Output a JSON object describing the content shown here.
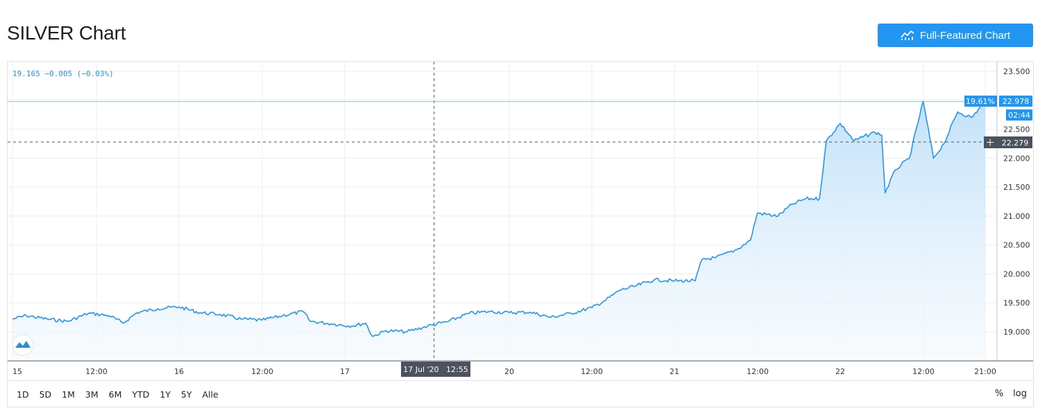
{
  "header": {
    "title": "SILVER Chart",
    "full_featured_label": "Full-Featured Chart",
    "full_featured_icon": "chart-line-icon"
  },
  "legend": {
    "text": "19.165 −0.005 (−0.03%)"
  },
  "price_tags": {
    "last_price": "22.978",
    "percent_change": "19.61%",
    "countdown": "02:44",
    "crosshair_price": "22.279",
    "crosshair_time": "17 Jul '20   12:55"
  },
  "range_buttons": [
    "1D",
    "5D",
    "1M",
    "3M",
    "6M",
    "YTD",
    "1Y",
    "5Y",
    "Alle"
  ],
  "scale_buttons": {
    "percent": "%",
    "log": "log"
  },
  "colors": {
    "line": "#2196f3",
    "fill_top": "#bfe0f8",
    "fill_bottom": "#f3f9fe",
    "tag_blue": "#2196f3",
    "tag_dark": "#4c525e",
    "grid": "#eceef2"
  },
  "chart_data": {
    "type": "area",
    "title": "SILVER Chart",
    "xlabel": "",
    "ylabel": "",
    "y_ticks": [
      "19.000",
      "19.500",
      "20.000",
      "20.500",
      "21.000",
      "21.500",
      "22.000",
      "22.500",
      "23.000",
      "23.500"
    ],
    "x_ticks": [
      "15",
      "12:00",
      "16",
      "12:00",
      "17",
      "20",
      "12:00",
      "21",
      "12:00",
      "22",
      "12:00",
      "21:00"
    ],
    "ylim": [
      18.6,
      23.7
    ],
    "grid": true,
    "x": [
      "15 00:00",
      "15 06:00",
      "15 12:00",
      "15 18:00",
      "16 00:00",
      "16 06:00",
      "16 12:00",
      "16 18:00",
      "17 00:00",
      "17 06:00",
      "17 12:00",
      "17 18:00",
      "20 00:00",
      "20 06:00",
      "20 12:00",
      "20 18:00",
      "21 00:00",
      "21 06:00",
      "21 12:00",
      "21 18:00",
      "22 00:00",
      "22 06:00",
      "22 12:00",
      "22 18:00",
      "22 21:00"
    ],
    "series": [
      {
        "name": "SILVER",
        "points": [
          [
            "15 00:00",
            19.22
          ],
          [
            "15 02:00",
            19.28
          ],
          [
            "15 05:00",
            19.22
          ],
          [
            "15 08:00",
            19.18
          ],
          [
            "15 11:00",
            19.32
          ],
          [
            "15 14:00",
            19.28
          ],
          [
            "15 16:00",
            19.15
          ],
          [
            "15 18:00",
            19.33
          ],
          [
            "15 21:00",
            19.4
          ],
          [
            "16 00:00",
            19.43
          ],
          [
            "16 03:00",
            19.33
          ],
          [
            "16 06:00",
            19.3
          ],
          [
            "16 09:00",
            19.22
          ],
          [
            "16 12:00",
            19.2
          ],
          [
            "16 15:00",
            19.28
          ],
          [
            "16 18:00",
            19.35
          ],
          [
            "16 19:00",
            19.18
          ],
          [
            "16 22:00",
            19.14
          ],
          [
            "17 01:00",
            19.1
          ],
          [
            "17 03:00",
            19.15
          ],
          [
            "17 04:00",
            18.92
          ],
          [
            "17 06:00",
            19.02
          ],
          [
            "17 09:00",
            19.0
          ],
          [
            "17 12:00",
            19.1
          ],
          [
            "17 15:00",
            19.18
          ],
          [
            "17 18:00",
            19.32
          ],
          [
            "17 21:00",
            19.35
          ],
          [
            "20 00:00",
            19.33
          ],
          [
            "20 03:00",
            19.34
          ],
          [
            "20 06:00",
            19.25
          ],
          [
            "20 09:00",
            19.32
          ],
          [
            "20 12:00",
            19.42
          ],
          [
            "20 14:00",
            19.55
          ],
          [
            "20 16:00",
            19.72
          ],
          [
            "20 18:00",
            19.78
          ],
          [
            "20 21:00",
            19.9
          ],
          [
            "21 00:00",
            19.88
          ],
          [
            "21 03:00",
            19.88
          ],
          [
            "21 04:00",
            20.25
          ],
          [
            "21 06:00",
            20.28
          ],
          [
            "21 09:00",
            20.42
          ],
          [
            "21 11:00",
            20.58
          ],
          [
            "21 12:00",
            21.05
          ],
          [
            "21 15:00",
            21.0
          ],
          [
            "21 17:00",
            21.2
          ],
          [
            "21 19:00",
            21.3
          ],
          [
            "21 21:00",
            21.3
          ],
          [
            "21 22:00",
            22.3
          ],
          [
            "22 00:00",
            22.6
          ],
          [
            "22 02:00",
            22.3
          ],
          [
            "22 05:00",
            22.45
          ],
          [
            "22 06:00",
            22.4
          ],
          [
            "22 06:30",
            21.4
          ],
          [
            "22 08:00",
            21.8
          ],
          [
            "22 10:00",
            22.0
          ],
          [
            "22 12:00",
            22.98
          ],
          [
            "22 13:30",
            22.0
          ],
          [
            "22 15:00",
            22.25
          ],
          [
            "22 17:00",
            22.8
          ],
          [
            "22 19:00",
            22.7
          ],
          [
            "22 21:00",
            22.98
          ]
        ]
      }
    ],
    "crosshair": {
      "time": "17 Jul '20   12:55",
      "price": 22.279
    },
    "last_price_line": 22.978
  }
}
